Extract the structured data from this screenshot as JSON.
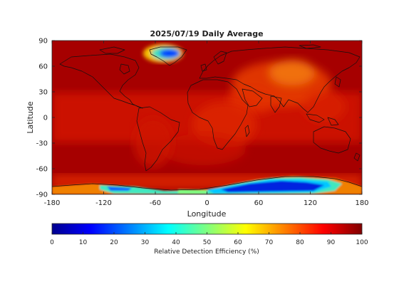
{
  "chart_data": {
    "type": "heatmap",
    "title": "2025/07/19 Daily Average",
    "xlabel": "Longitude",
    "ylabel": "Latitude",
    "xlim": [
      -180,
      180
    ],
    "ylim": [
      -90,
      90
    ],
    "x_ticks": [
      -180,
      -120,
      -60,
      0,
      60,
      120,
      180
    ],
    "y_ticks": [
      90,
      60,
      30,
      0,
      -30,
      -60,
      -90
    ],
    "colorbar": {
      "label": "Relative Detection Efficiency (%)",
      "range": [
        0,
        100
      ],
      "ticks": [
        0,
        10,
        20,
        30,
        40,
        50,
        60,
        70,
        80,
        90,
        100
      ],
      "colormap": "jet"
    },
    "background_value_approx": 88,
    "regions": [
      {
        "name": "Greenland ice sheet",
        "lon": -38,
        "lat": 72,
        "value_min_approx": 20
      },
      {
        "name": "Antarctic ice shelf (west)",
        "lon": -110,
        "lat": -80,
        "value_min_approx": 35
      },
      {
        "name": "East Antarctica",
        "lon": 90,
        "lat": -78,
        "value_min_approx": 10
      },
      {
        "name": "Middle East / Central Asia",
        "lon": 55,
        "lat": 50,
        "value_approx": 76
      }
    ],
    "grid": false,
    "legend": "none"
  }
}
